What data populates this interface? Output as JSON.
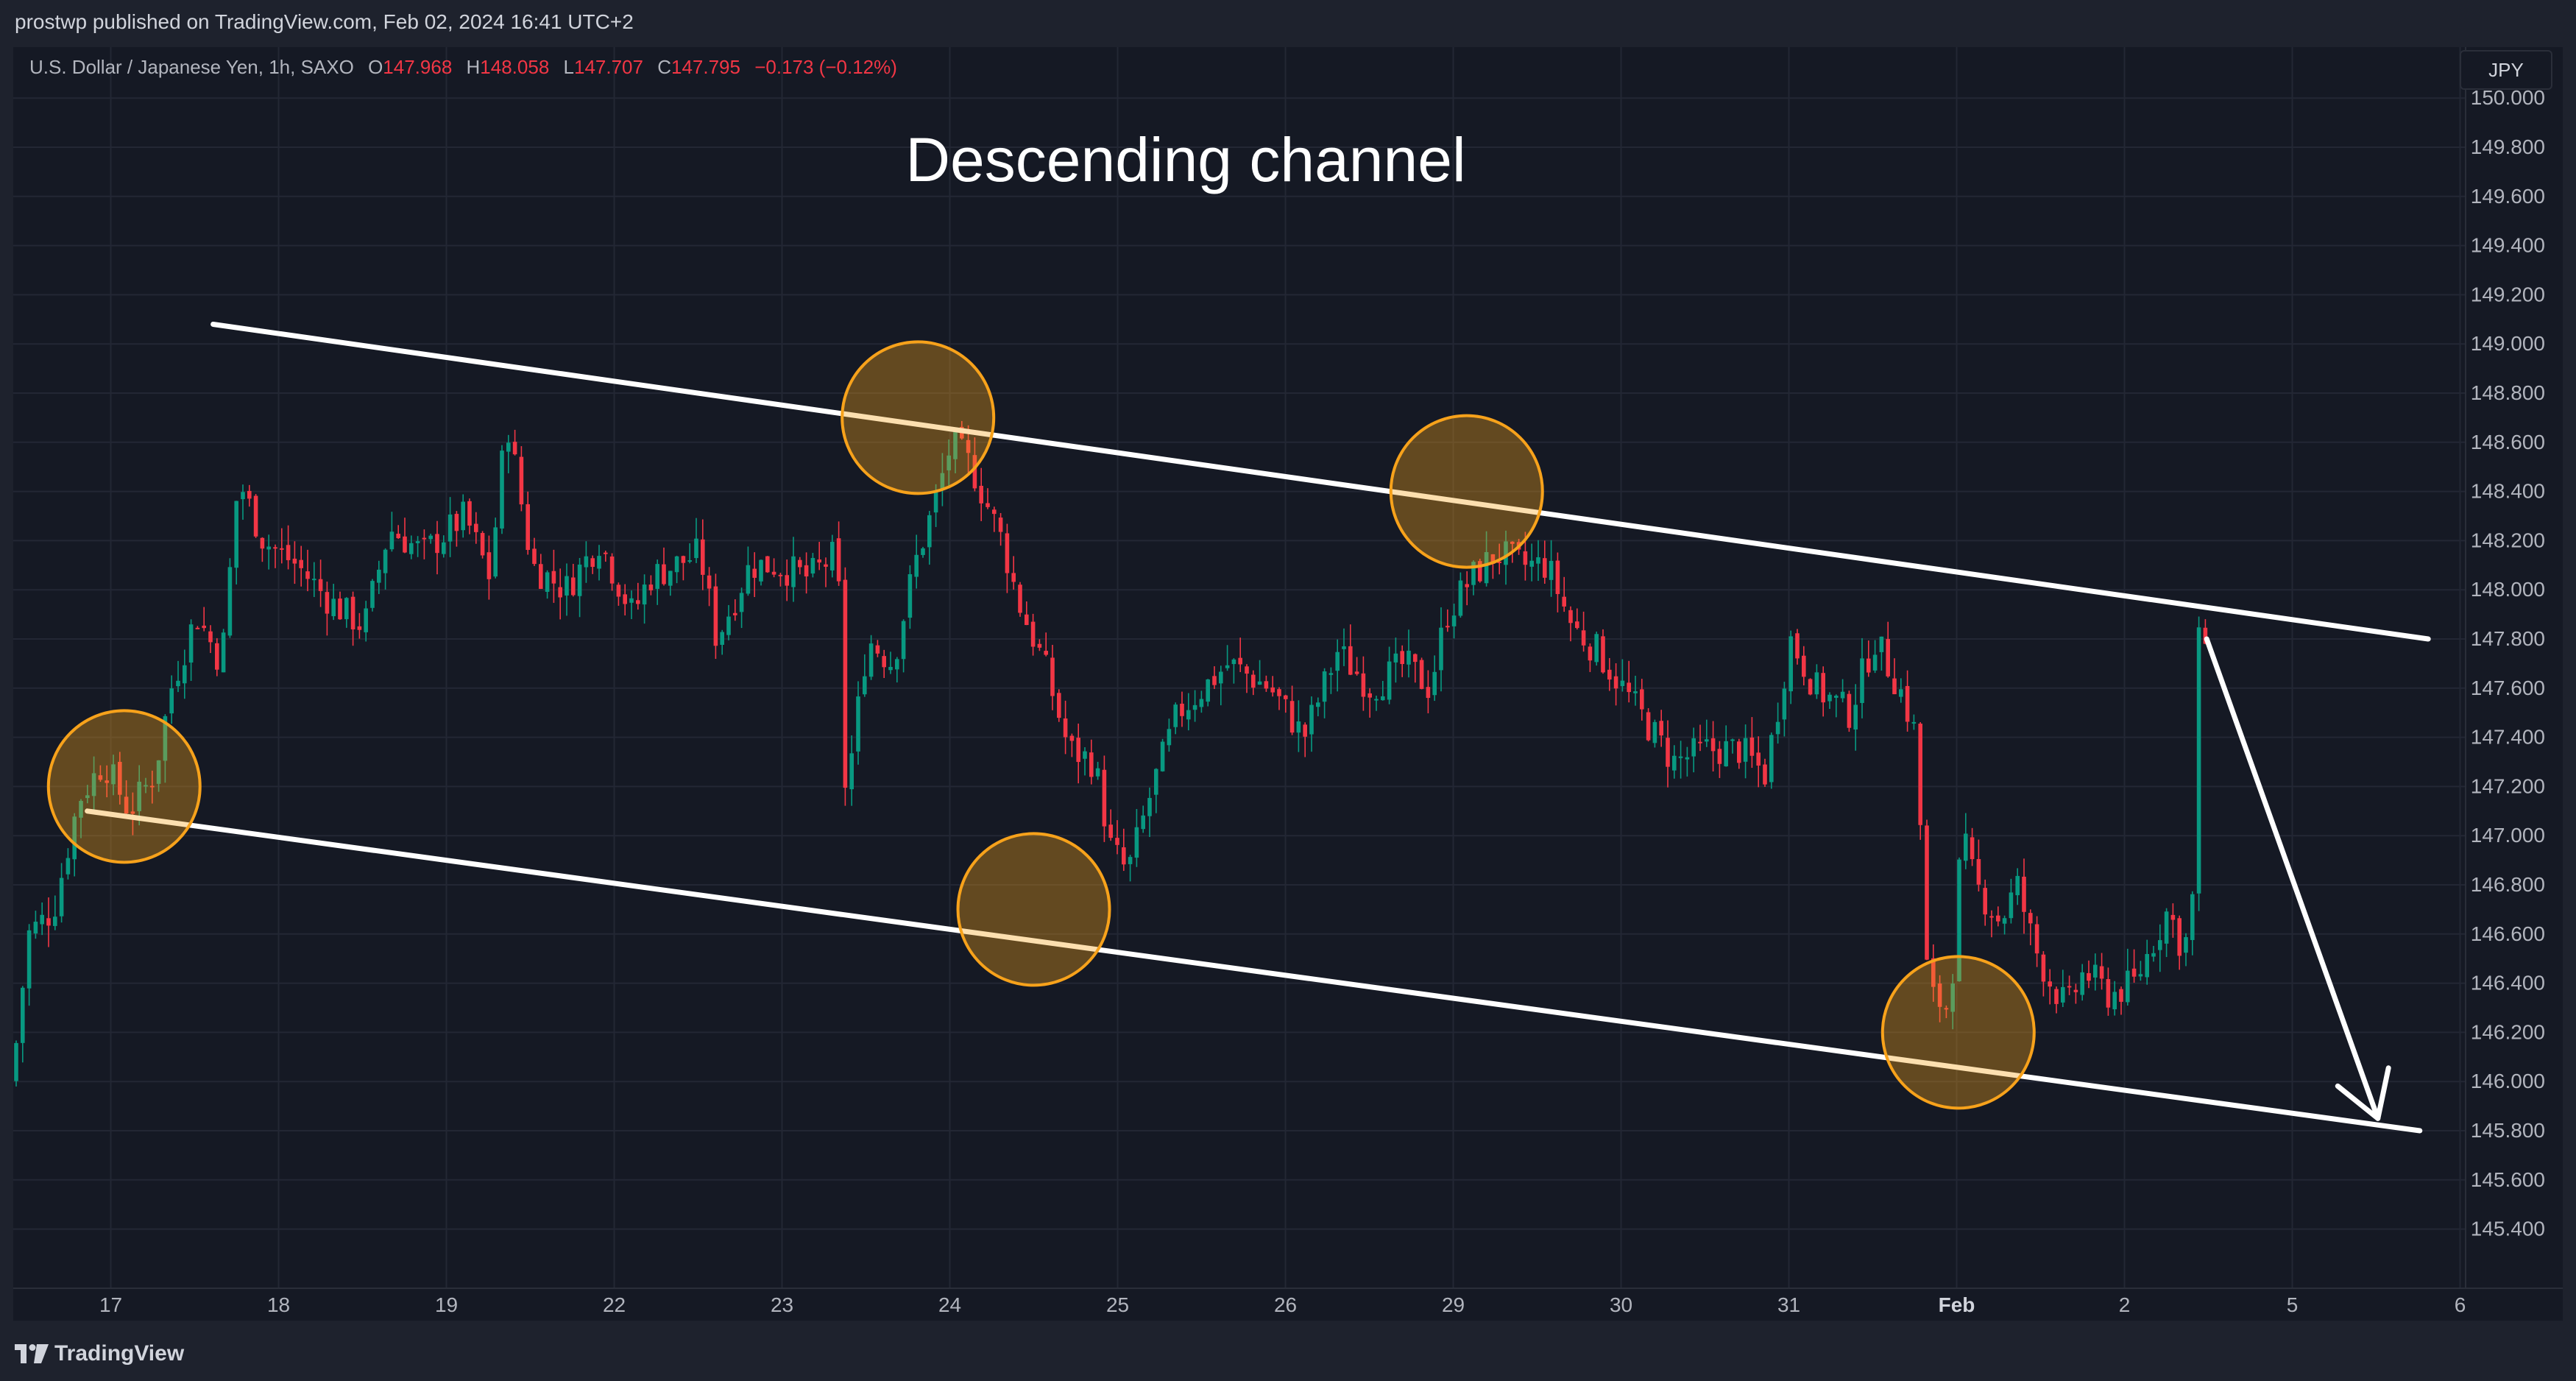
{
  "header": {
    "publish_text": "prostwp published on TradingView.com, Feb 02, 2024 16:41 UTC+2"
  },
  "legend": {
    "symbol": "U.S. Dollar / Japanese Yen, 1h, SAXO",
    "o_label": "O",
    "o_value": "147.968",
    "h_label": "H",
    "h_value": "148.058",
    "l_label": "L",
    "l_value": "147.707",
    "c_label": "C",
    "c_value": "147.795",
    "change": "−0.173 (−0.12%)"
  },
  "currency_button": "JPY",
  "footer": {
    "brand": "TradingView"
  },
  "colors": {
    "up": "#089981",
    "down": "#f23645",
    "background": "#151924",
    "annotation_circle": "#f7a21b",
    "trendline": "#ffffff"
  },
  "chart_data": {
    "type": "candlestick",
    "title": "Descending channel",
    "symbol": "USD/JPY",
    "timeframe": "1h",
    "ylim": [
      145.3,
      150.0
    ],
    "y_ticks": [
      "150.000",
      "149.800",
      "149.600",
      "149.400",
      "149.200",
      "149.000",
      "148.800",
      "148.600",
      "148.400",
      "148.200",
      "148.000",
      "147.800",
      "147.600",
      "147.400",
      "147.200",
      "147.000",
      "146.800",
      "146.600",
      "146.400",
      "146.200",
      "146.000",
      "145.800",
      "145.600",
      "145.400"
    ],
    "x_ticks": [
      {
        "label": "17",
        "t": 0.59
      },
      {
        "label": "18",
        "t": 1.59
      },
      {
        "label": "19",
        "t": 2.59
      },
      {
        "label": "22",
        "t": 3.59
      },
      {
        "label": "23",
        "t": 4.59
      },
      {
        "label": "24",
        "t": 5.59
      },
      {
        "label": "25",
        "t": 6.59
      },
      {
        "label": "26",
        "t": 7.59
      },
      {
        "label": "29",
        "t": 8.59
      },
      {
        "label": "30",
        "t": 9.59
      },
      {
        "label": "31",
        "t": 10.59
      },
      {
        "label": "Feb",
        "t": 11.59,
        "bold": true
      },
      {
        "label": "2",
        "t": 12.59
      },
      {
        "label": "5",
        "t": 13.59
      },
      {
        "label": "6",
        "t": 14.59
      }
    ],
    "x_range": [
      0,
      15.03
    ],
    "price_path": [
      [
        0.0,
        146.0
      ],
      [
        0.1,
        146.6
      ],
      [
        0.25,
        146.7
      ],
      [
        0.4,
        147.15
      ],
      [
        0.55,
        147.3
      ],
      [
        0.7,
        147.1
      ],
      [
        0.85,
        147.25
      ],
      [
        0.95,
        147.6
      ],
      [
        1.1,
        147.9
      ],
      [
        1.25,
        147.7
      ],
      [
        1.35,
        148.45
      ],
      [
        1.5,
        148.2
      ],
      [
        1.7,
        148.1
      ],
      [
        1.9,
        147.95
      ],
      [
        2.1,
        147.85
      ],
      [
        2.25,
        148.25
      ],
      [
        2.45,
        148.15
      ],
      [
        2.7,
        148.3
      ],
      [
        2.85,
        148.05
      ],
      [
        2.95,
        148.7
      ],
      [
        3.1,
        148.1
      ],
      [
        3.3,
        148.0
      ],
      [
        3.5,
        148.2
      ],
      [
        3.7,
        147.9
      ],
      [
        3.8,
        148.05
      ],
      [
        4.1,
        148.15
      ],
      [
        4.2,
        147.8
      ],
      [
        4.4,
        148.1
      ],
      [
        4.55,
        148.1
      ],
      [
        4.75,
        148.05
      ],
      [
        4.92,
        148.15
      ],
      [
        4.97,
        147.15
      ],
      [
        5.1,
        147.8
      ],
      [
        5.25,
        147.7
      ],
      [
        5.38,
        148.1
      ],
      [
        5.5,
        148.35
      ],
      [
        5.6,
        148.6
      ],
      [
        5.72,
        148.5
      ],
      [
        5.9,
        148.2
      ],
      [
        6.0,
        147.95
      ],
      [
        6.15,
        147.7
      ],
      [
        6.3,
        147.35
      ],
      [
        6.45,
        147.3
      ],
      [
        6.55,
        146.95
      ],
      [
        6.65,
        146.85
      ],
      [
        6.8,
        147.2
      ],
      [
        6.95,
        147.5
      ],
      [
        7.1,
        147.6
      ],
      [
        7.25,
        147.7
      ],
      [
        7.5,
        147.6
      ],
      [
        7.7,
        147.4
      ],
      [
        7.9,
        147.75
      ],
      [
        8.1,
        147.6
      ],
      [
        8.3,
        147.7
      ],
      [
        8.45,
        147.6
      ],
      [
        8.55,
        147.9
      ],
      [
        8.7,
        148.05
      ],
      [
        8.85,
        148.15
      ],
      [
        9.0,
        148.1
      ],
      [
        9.15,
        148.1
      ],
      [
        9.3,
        147.85
      ],
      [
        9.45,
        147.75
      ],
      [
        9.6,
        147.6
      ],
      [
        9.75,
        147.45
      ],
      [
        9.9,
        147.3
      ],
      [
        10.1,
        147.35
      ],
      [
        10.3,
        147.35
      ],
      [
        10.45,
        147.25
      ],
      [
        10.6,
        147.8
      ],
      [
        10.75,
        147.6
      ],
      [
        10.95,
        147.5
      ],
      [
        11.1,
        147.8
      ],
      [
        11.25,
        147.6
      ],
      [
        11.35,
        147.4
      ],
      [
        11.42,
        146.35
      ],
      [
        11.55,
        146.3
      ],
      [
        11.62,
        147.0
      ],
      [
        11.7,
        146.8
      ],
      [
        11.85,
        146.65
      ],
      [
        11.95,
        146.8
      ],
      [
        12.05,
        146.55
      ],
      [
        12.15,
        146.4
      ],
      [
        12.25,
        146.3
      ],
      [
        12.35,
        146.45
      ],
      [
        12.5,
        146.35
      ],
      [
        12.65,
        146.4
      ],
      [
        12.75,
        146.55
      ],
      [
        12.85,
        146.7
      ],
      [
        12.93,
        146.55
      ],
      [
        12.99,
        146.6
      ],
      [
        13.03,
        147.8
      ],
      [
        13.08,
        147.79
      ]
    ],
    "channel": {
      "upper": {
        "from": {
          "t": 1.2,
          "price": 149.08
        },
        "to": {
          "t": 14.4,
          "price": 147.8
        }
      },
      "lower": {
        "from": {
          "t": 0.45,
          "price": 147.1
        },
        "to": {
          "t": 14.35,
          "price": 145.8
        }
      }
    },
    "touch_points": [
      {
        "t": 0.67,
        "price": 147.2
      },
      {
        "t": 5.4,
        "price": 148.7
      },
      {
        "t": 8.67,
        "price": 148.4
      },
      {
        "t": 6.09,
        "price": 146.7
      },
      {
        "t": 11.6,
        "price": 146.2
      }
    ],
    "projection_arrow": {
      "from": {
        "t": 13.08,
        "price": 147.8
      },
      "to": {
        "t": 14.1,
        "price": 145.85
      }
    }
  }
}
